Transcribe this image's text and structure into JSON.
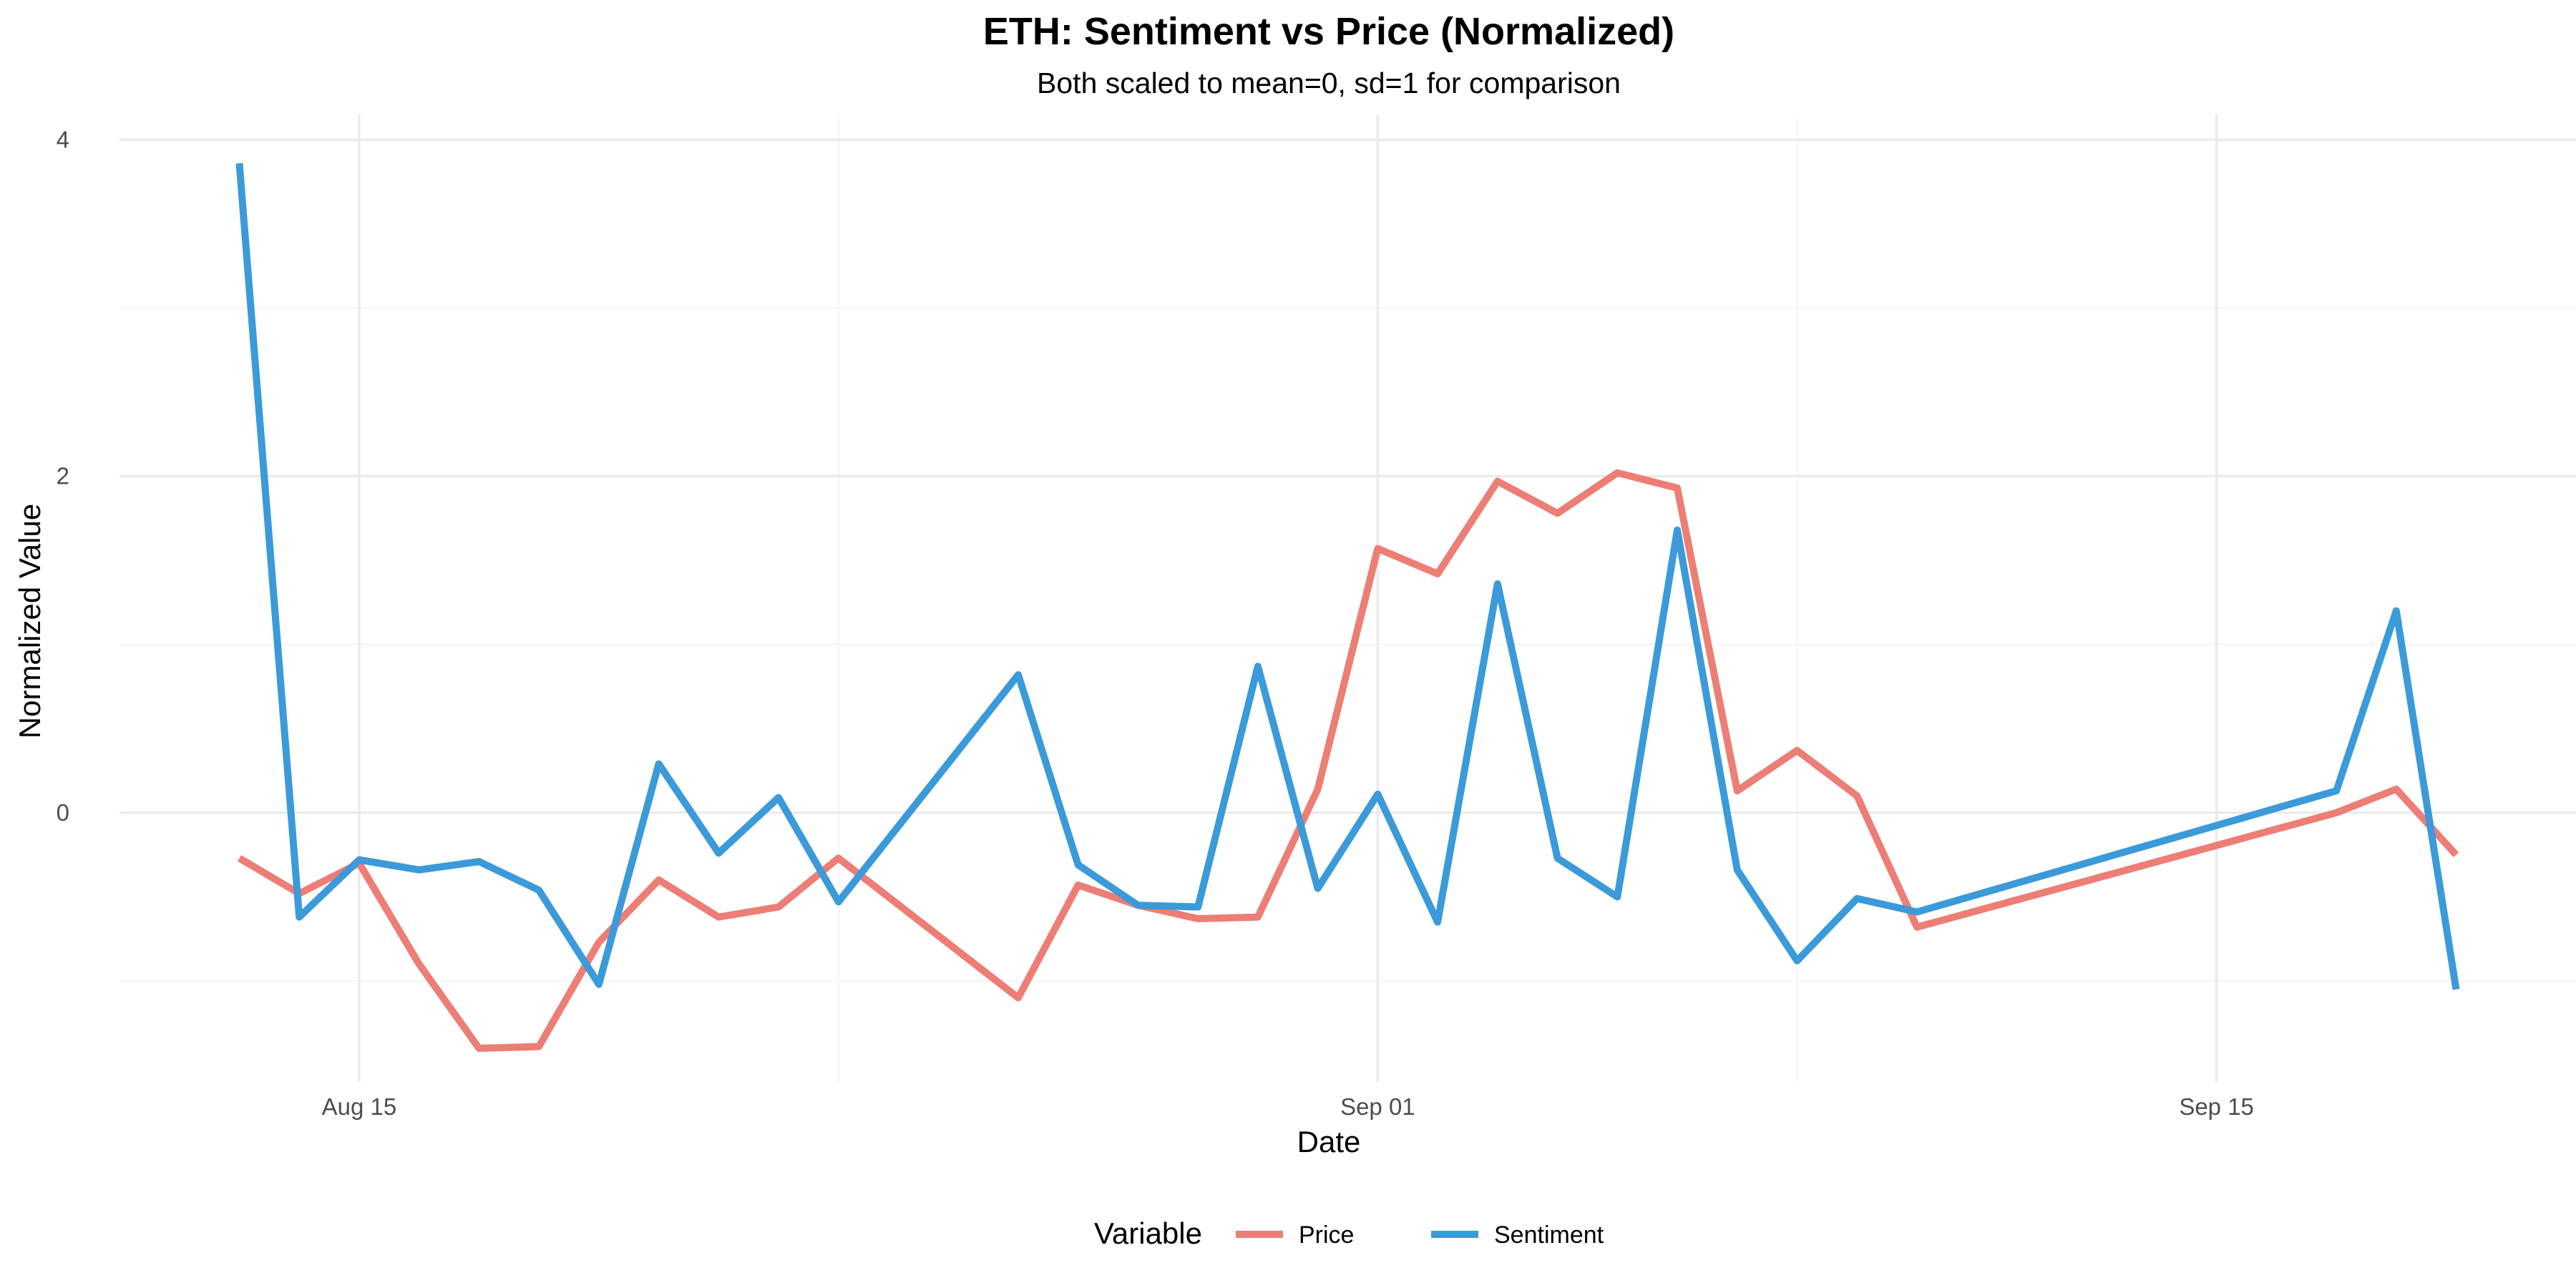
{
  "chart_data": {
    "type": "line",
    "title": "ETH: Sentiment vs Price (Normalized)",
    "subtitle": "Both scaled to mean=0, sd=1 for comparison",
    "xlabel": "Date",
    "ylabel": "Normalized Value",
    "ylim": [
      -1.6,
      4.15
    ],
    "xlim": [
      "2024-08-11",
      "2024-09-21"
    ],
    "y_ticks": [
      0,
      2,
      4
    ],
    "y_minor_ticks": [
      -1,
      1,
      3
    ],
    "x_ticks": [
      {
        "date": "2024-08-15",
        "label": "Aug 15"
      },
      {
        "date": "2024-09-01",
        "label": "Sep 01"
      },
      {
        "date": "2024-09-15",
        "label": "Sep 15"
      }
    ],
    "x_minor_ticks": [
      "2024-08-08",
      "2024-08-23",
      "2024-09-08",
      "2024-09-22"
    ],
    "grid": true,
    "legend": {
      "title": "Variable",
      "position": "bottom"
    },
    "series": [
      {
        "name": "Price",
        "color": "#ec7e75",
        "x": [
          "2024-08-13",
          "2024-08-14",
          "2024-08-15",
          "2024-08-16",
          "2024-08-17",
          "2024-08-18",
          "2024-08-19",
          "2024-08-20",
          "2024-08-21",
          "2024-08-22",
          "2024-08-23",
          "2024-08-26",
          "2024-08-27",
          "2024-08-28",
          "2024-08-29",
          "2024-08-30",
          "2024-08-31",
          "2024-09-01",
          "2024-09-02",
          "2024-09-03",
          "2024-09-04",
          "2024-09-05",
          "2024-09-06",
          "2024-09-07",
          "2024-09-08",
          "2024-09-09",
          "2024-09-10",
          "2024-09-17",
          "2024-09-18",
          "2024-09-19"
        ],
        "values": [
          -0.27,
          -0.48,
          -0.3,
          -0.9,
          -1.4,
          -1.39,
          -0.77,
          -0.4,
          -0.62,
          -0.56,
          -0.27,
          -1.1,
          -0.43,
          -0.55,
          -0.63,
          -0.62,
          0.14,
          1.57,
          1.42,
          1.97,
          1.78,
          2.02,
          1.93,
          0.13,
          0.37,
          0.1,
          -0.68,
          0.0,
          0.14,
          -0.25
        ]
      },
      {
        "name": "Sentiment",
        "color": "#3b9ad9",
        "x": [
          "2024-08-13",
          "2024-08-14",
          "2024-08-15",
          "2024-08-16",
          "2024-08-17",
          "2024-08-18",
          "2024-08-19",
          "2024-08-20",
          "2024-08-21",
          "2024-08-22",
          "2024-08-23",
          "2024-08-26",
          "2024-08-27",
          "2024-08-28",
          "2024-08-29",
          "2024-08-30",
          "2024-08-31",
          "2024-09-01",
          "2024-09-02",
          "2024-09-03",
          "2024-09-04",
          "2024-09-05",
          "2024-09-06",
          "2024-09-07",
          "2024-09-08",
          "2024-09-09",
          "2024-09-10",
          "2024-09-17",
          "2024-09-18",
          "2024-09-19"
        ],
        "values": [
          3.86,
          -0.62,
          -0.28,
          -0.34,
          -0.29,
          -0.46,
          -1.02,
          0.29,
          -0.24,
          0.09,
          -0.53,
          0.82,
          -0.31,
          -0.55,
          -0.56,
          0.87,
          -0.45,
          0.11,
          -0.65,
          1.36,
          -0.27,
          -0.5,
          1.68,
          -0.34,
          -0.88,
          -0.51,
          -0.59,
          0.13,
          1.2,
          -1.05
        ]
      }
    ]
  }
}
